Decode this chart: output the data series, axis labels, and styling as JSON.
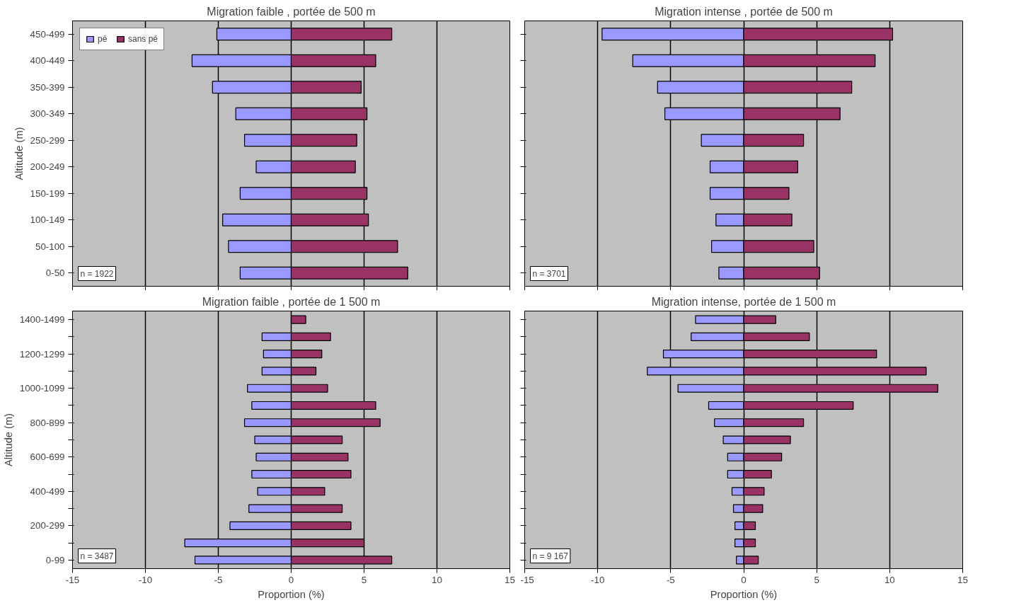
{
  "chart_data": [
    {
      "type": "bar",
      "orientation": "horizontal",
      "title": "Migration faible , portée de 500 m",
      "ylabel": "Altitude (m)",
      "categories": [
        "450-499",
        "400-449",
        "350-399",
        "300-349",
        "250-299",
        "200-249",
        "150-199",
        "100-149",
        "50-100",
        "0-50"
      ],
      "series": [
        {
          "name": "pé",
          "color": "#9999ff",
          "values": [
            -5.1,
            -6.8,
            -5.4,
            -3.8,
            -3.2,
            -2.4,
            -3.5,
            -4.7,
            -4.3,
            -3.5
          ]
        },
        {
          "name": "sans pé",
          "color": "#993366",
          "values": [
            6.9,
            5.8,
            4.8,
            5.2,
            4.5,
            4.4,
            5.2,
            5.3,
            7.3,
            8.0
          ]
        }
      ],
      "xlim": [
        -15,
        15
      ],
      "xticks": [
        -15,
        -10,
        -5,
        0,
        5,
        10,
        15
      ],
      "tick_labels": "y",
      "grid": "x",
      "legend": "top left",
      "stacked": true,
      "annotations": [
        "n = 1922"
      ]
    },
    {
      "type": "bar",
      "orientation": "horizontal",
      "title": "Migration intense , portée de 500 m",
      "categories": [
        null,
        null,
        null,
        null,
        null,
        null,
        null,
        null,
        null,
        null
      ],
      "series": [
        {
          "color": "#9999ff",
          "values": [
            -9.7,
            -7.6,
            -5.9,
            -5.4,
            -2.9,
            -2.3,
            -2.3,
            -1.9,
            -2.2,
            -1.7
          ]
        },
        {
          "color": "#993366",
          "values": [
            10.2,
            9.0,
            7.4,
            6.6,
            4.1,
            3.7,
            3.1,
            3.3,
            4.8,
            5.2
          ]
        }
      ],
      "xlim": [
        -15,
        15
      ],
      "xticks": [
        -15,
        -10,
        -5,
        0,
        5,
        10,
        15
      ],
      "tick_labels": false,
      "grid": "x",
      "stacked": true,
      "annotations": [
        "n = 3701"
      ]
    },
    {
      "type": "bar",
      "orientation": "horizontal",
      "title": "Migration faible , portée de 1 500 m",
      "ylabel": "Altitude (m)",
      "xlabel": "Proportion (%)",
      "categories": [
        "1400-1499",
        null,
        "1200-1299",
        null,
        "1000-1099",
        null,
        "800-899",
        null,
        "600-699",
        null,
        "400-499",
        null,
        "200-299",
        null,
        "0-99"
      ],
      "series": [
        {
          "color": "#9999ff",
          "values": [
            null,
            -2.0,
            -1.9,
            -2.0,
            -3.0,
            -2.7,
            -3.2,
            -2.5,
            -2.4,
            -2.7,
            -2.3,
            -2.9,
            -4.2,
            -7.3,
            -6.6
          ]
        },
        {
          "color": "#993366",
          "values": [
            1.0,
            2.7,
            2.1,
            1.7,
            2.5,
            5.8,
            6.1,
            3.5,
            3.9,
            4.1,
            2.3,
            3.5,
            4.1,
            5.0,
            6.9
          ]
        }
      ],
      "xlim": [
        -15,
        15
      ],
      "xticks": [
        -15,
        -10,
        -5,
        0,
        5,
        10,
        15
      ],
      "grid": "x",
      "stacked": true,
      "annotations": [
        "n = 3487"
      ]
    },
    {
      "type": "bar",
      "orientation": "horizontal",
      "title": "Migration intense, portée de 1 500 m",
      "xlabel": "Proportion (%)",
      "categories": [
        null,
        null,
        null,
        null,
        null,
        null,
        null,
        null,
        null,
        null,
        null,
        null,
        null,
        null,
        null
      ],
      "series": [
        {
          "color": "#9999ff",
          "values": [
            -3.3,
            -3.6,
            -5.5,
            -6.6,
            -4.5,
            -2.4,
            -2.0,
            -1.4,
            -1.1,
            -1.1,
            -0.8,
            -0.7,
            -0.6,
            -0.6,
            -0.5
          ]
        },
        {
          "color": "#993366",
          "values": [
            2.2,
            4.5,
            9.1,
            12.5,
            13.3,
            7.5,
            4.1,
            3.2,
            2.6,
            1.9,
            1.4,
            1.3,
            0.8,
            0.8,
            1.0
          ]
        }
      ],
      "xlim": [
        -15,
        15
      ],
      "xticks": [
        -15,
        -10,
        -5,
        0,
        5,
        10,
        15
      ],
      "tick_labels": "x",
      "grid": "x",
      "stacked": true,
      "annotations": [
        "n = 9 167"
      ]
    }
  ]
}
